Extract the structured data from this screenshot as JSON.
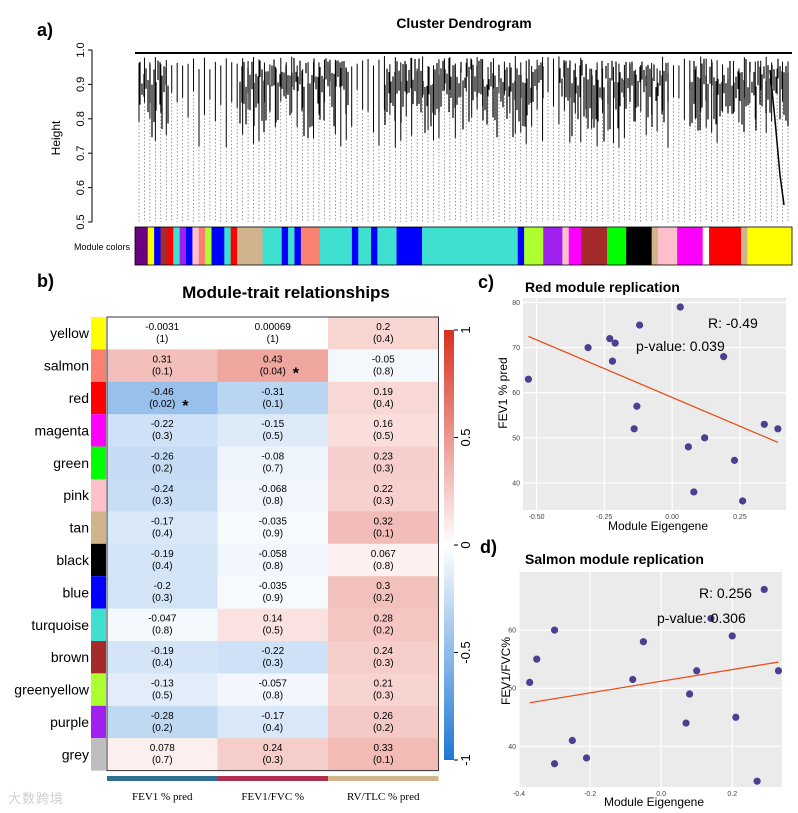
{
  "panel_labels": {
    "a": "a)",
    "b": "b)",
    "c": "c)",
    "d": "d)"
  },
  "watermark": "大数跨境",
  "chart_data": [
    {
      "type": "dendrogram",
      "title": "Cluster Dendrogram",
      "ylabel": "Height",
      "ylim": [
        0.5,
        1.0
      ],
      "yticks": [
        0.5,
        0.6,
        0.7,
        0.8,
        0.9,
        1.0
      ],
      "color_bar_label": "Module colors",
      "module_segments": [
        {
          "color": "#6b0080",
          "width": 2
        },
        {
          "color": "#ffff00",
          "width": 1
        },
        {
          "color": "#0000ff",
          "width": 1
        },
        {
          "color": "#a52a2a",
          "width": 1
        },
        {
          "color": "#ff0000",
          "width": 1
        },
        {
          "color": "#40e0d0",
          "width": 1
        },
        {
          "color": "#a020f0",
          "width": 1
        },
        {
          "color": "#0000ff",
          "width": 1
        },
        {
          "color": "#ffc0cb",
          "width": 1
        },
        {
          "color": "#fa8072",
          "width": 1
        },
        {
          "color": "#adff2f",
          "width": 1
        },
        {
          "color": "#0000ff",
          "width": 2
        },
        {
          "color": "#40e0d0",
          "width": 1
        },
        {
          "color": "#ff0000",
          "width": 1
        },
        {
          "color": "#d2b48c",
          "width": 4
        },
        {
          "color": "#40e0d0",
          "width": 3
        },
        {
          "color": "#0000ff",
          "width": 1
        },
        {
          "color": "#40e0d0",
          "width": 1
        },
        {
          "color": "#0000ff",
          "width": 1
        },
        {
          "color": "#fa8072",
          "width": 3
        },
        {
          "color": "#40e0d0",
          "width": 5
        },
        {
          "color": "#0000ff",
          "width": 1
        },
        {
          "color": "#40e0d0",
          "width": 2
        },
        {
          "color": "#0000ff",
          "width": 1
        },
        {
          "color": "#40e0d0",
          "width": 3
        },
        {
          "color": "#0000ff",
          "width": 4
        },
        {
          "color": "#40e0d0",
          "width": 15
        },
        {
          "color": "#0000ff",
          "width": 1
        },
        {
          "color": "#adff2f",
          "width": 3
        },
        {
          "color": "#a020f0",
          "width": 3
        },
        {
          "color": "#ffc0cb",
          "width": 1
        },
        {
          "color": "#ff00ff",
          "width": 2
        },
        {
          "color": "#a52a2a",
          "width": 4
        },
        {
          "color": "#00ff00",
          "width": 3
        },
        {
          "color": "#000000",
          "width": 4
        },
        {
          "color": "#d2b48c",
          "width": 1
        },
        {
          "color": "#ffc0cb",
          "width": 3
        },
        {
          "color": "#ff00ff",
          "width": 4
        },
        {
          "color": "#ffffff",
          "width": 1
        },
        {
          "color": "#ff0000",
          "width": 5
        },
        {
          "color": "#d2b48c",
          "width": 1
        },
        {
          "color": "#ffff00",
          "width": 7
        }
      ]
    },
    {
      "type": "heatmap",
      "title": "Module-trait relationships",
      "rows": [
        "yellow",
        "salmon",
        "red",
        "magenta",
        "green",
        "pink",
        "tan",
        "black",
        "blue",
        "turquoise",
        "brown",
        "greenyellow",
        "purple",
        "grey"
      ],
      "row_colors": [
        "#ffff00",
        "#fa8072",
        "#ff0000",
        "#ff00ff",
        "#00ff00",
        "#ffc0cb",
        "#d2b48c",
        "#000000",
        "#0000ff",
        "#40e0d0",
        "#a52a2a",
        "#adff2f",
        "#a020f0",
        "#bebebe"
      ],
      "columns": [
        "FEV1 % pred",
        "FEV1/FVC %",
        "RV/TLC % pred"
      ],
      "column_colors": [
        "#2f6f8f",
        "#b03050",
        "#d2b48c"
      ],
      "correlations": [
        [
          "-0.0031",
          "0.00069",
          "0.2"
        ],
        [
          "0.31",
          "0.43",
          "-0.05"
        ],
        [
          "-0.46",
          "-0.31",
          "0.19"
        ],
        [
          "-0.22",
          "-0.15",
          "0.16"
        ],
        [
          "-0.26",
          "-0.08",
          "0.23"
        ],
        [
          "-0.24",
          "-0.068",
          "0.22"
        ],
        [
          "-0.17",
          "-0.035",
          "0.32"
        ],
        [
          "-0.19",
          "-0.058",
          "0.067"
        ],
        [
          "-0.2",
          "-0.035",
          "0.3"
        ],
        [
          "-0.047",
          "0.14",
          "0.28"
        ],
        [
          "-0.19",
          "-0.22",
          "0.24"
        ],
        [
          "-0.13",
          "-0.057",
          "0.21"
        ],
        [
          "-0.28",
          "-0.17",
          "0.26"
        ],
        [
          "0.078",
          "0.24",
          "0.33"
        ]
      ],
      "pvalues": [
        [
          "(1)",
          "(1)",
          "(0.4)"
        ],
        [
          "(0.1)",
          "(0.04)",
          "(0.8)"
        ],
        [
          "(0.02)",
          "(0.1)",
          "(0.4)"
        ],
        [
          "(0.3)",
          "(0.5)",
          "(0.5)"
        ],
        [
          "(0.2)",
          "(0.7)",
          "(0.3)"
        ],
        [
          "(0.3)",
          "(0.8)",
          "(0.3)"
        ],
        [
          "(0.4)",
          "(0.9)",
          "(0.1)"
        ],
        [
          "(0.4)",
          "(0.8)",
          "(0.8)"
        ],
        [
          "(0.3)",
          "(0.9)",
          "(0.2)"
        ],
        [
          "(0.8)",
          "(0.5)",
          "(0.2)"
        ],
        [
          "(0.4)",
          "(0.3)",
          "(0.3)"
        ],
        [
          "(0.5)",
          "(0.8)",
          "(0.3)"
        ],
        [
          "(0.2)",
          "(0.4)",
          "(0.2)"
        ],
        [
          "(0.7)",
          "(0.3)",
          "(0.1)"
        ]
      ],
      "significance_marker": "*",
      "significant_cells": [
        [
          1,
          1
        ],
        [
          2,
          0
        ]
      ],
      "colorbar_range": [
        -1,
        1
      ],
      "colorbar_ticks": [
        "1",
        "0.5",
        "0",
        "-0.5",
        "-1"
      ],
      "colors": {
        "negative": "#1f77d4",
        "zero": "#ffffff",
        "positive": "#d73020"
      }
    },
    {
      "type": "scatter",
      "title": "Red module replication",
      "xlabel": "Module Eigengene",
      "ylabel": "FEV1 % pred",
      "xlim": [
        -0.55,
        0.42
      ],
      "ylim": [
        34,
        81
      ],
      "xticks": [
        "-0.50",
        "-0.25",
        "0.00",
        "0.25"
      ],
      "xtick_values": [
        -0.5,
        -0.25,
        0,
        0.25
      ],
      "yticks": [
        "40",
        "50",
        "60",
        "70",
        "80"
      ],
      "ytick_values": [
        40,
        50,
        60,
        70,
        80
      ],
      "points": [
        [
          -0.53,
          63
        ],
        [
          -0.31,
          70
        ],
        [
          -0.23,
          72
        ],
        [
          -0.22,
          67
        ],
        [
          -0.21,
          71
        ],
        [
          -0.14,
          52
        ],
        [
          -0.13,
          57
        ],
        [
          -0.12,
          75
        ],
        [
          0.03,
          79
        ],
        [
          0.06,
          48
        ],
        [
          0.08,
          38
        ],
        [
          0.12,
          50
        ],
        [
          0.19,
          68
        ],
        [
          0.23,
          45
        ],
        [
          0.26,
          36
        ],
        [
          0.34,
          53
        ],
        [
          0.39,
          52
        ]
      ],
      "fit_line": [
        [
          -0.53,
          72.5
        ],
        [
          0.39,
          49
        ]
      ],
      "annotation_r": "R:  -0.49",
      "annotation_p": "p-value:  0.039",
      "point_color": "#4b3f8f",
      "line_color": "#e8501e",
      "bg_color": "#ebebeb"
    },
    {
      "type": "scatter",
      "title": "Salmon module replication",
      "xlabel": "Module Eigengene",
      "ylabel": "FEV1/FVC%",
      "xlim": [
        -0.4,
        0.34
      ],
      "ylim": [
        33,
        70
      ],
      "xticks": [
        "-0.4",
        "-0.2",
        "0.0",
        "0.2"
      ],
      "xtick_values": [
        -0.4,
        -0.2,
        0,
        0.2
      ],
      "yticks": [
        "40",
        "50",
        "60"
      ],
      "ytick_values": [
        40,
        50,
        60
      ],
      "points": [
        [
          -0.37,
          51
        ],
        [
          -0.35,
          55
        ],
        [
          -0.3,
          60
        ],
        [
          -0.3,
          37
        ],
        [
          -0.25,
          41
        ],
        [
          -0.21,
          38
        ],
        [
          -0.08,
          51.5
        ],
        [
          -0.05,
          58
        ],
        [
          0.07,
          44
        ],
        [
          0.08,
          49
        ],
        [
          0.1,
          53
        ],
        [
          0.14,
          62
        ],
        [
          0.2,
          59
        ],
        [
          0.21,
          45
        ],
        [
          0.27,
          34
        ],
        [
          0.29,
          67
        ],
        [
          0.33,
          53
        ]
      ],
      "fit_line": [
        [
          -0.37,
          47.5
        ],
        [
          0.33,
          54.5
        ]
      ],
      "annotation_r": "R:  0.256",
      "annotation_p": "p-value:  0.306",
      "point_color": "#4b3f8f",
      "line_color": "#e8501e",
      "bg_color": "#ebebeb"
    }
  ]
}
